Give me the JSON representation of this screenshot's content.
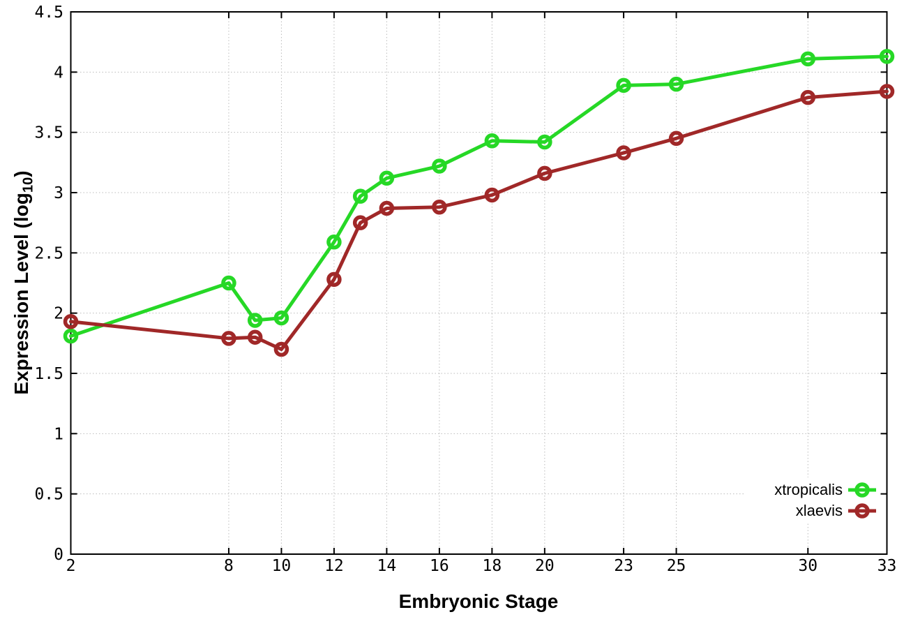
{
  "page": {
    "background": "#ffffff"
  },
  "chart_data": {
    "type": "line",
    "title": "",
    "xlabel": "Embryonic Stage",
    "ylabel": {
      "prefix": "Expression Level (log",
      "sub": "10",
      "suffix": ")"
    },
    "xlim": [
      2,
      33
    ],
    "ylim": [
      0,
      4.5
    ],
    "grid": true,
    "legend_position": "bottom-right",
    "x_tick_values": [
      2,
      8,
      10,
      12,
      14,
      16,
      18,
      20,
      23,
      25,
      30,
      33
    ],
    "x_tick_labels": [
      "2",
      "8",
      "10",
      "12",
      "14",
      "16",
      "18",
      "20",
      "23",
      "25",
      "30",
      "33"
    ],
    "y_tick_values": [
      0,
      0.5,
      1,
      1.5,
      2,
      2.5,
      3,
      3.5,
      4,
      4.5
    ],
    "y_tick_labels": [
      "0",
      "0.5",
      "1",
      "1.5",
      "2",
      "2.5",
      "3",
      "3.5",
      "4",
      "4.5"
    ],
    "x": [
      2,
      8,
      9,
      10,
      12,
      13,
      14,
      16,
      18,
      20,
      23,
      25,
      30,
      33
    ],
    "series": [
      {
        "name": "xtropicalis",
        "color": "#26d826",
        "values": [
          1.81,
          2.25,
          1.94,
          1.96,
          2.59,
          2.97,
          3.12,
          3.22,
          3.43,
          3.42,
          3.89,
          3.9,
          4.11,
          4.13
        ]
      },
      {
        "name": "xlaevis",
        "color": "#a02828",
        "values": [
          1.93,
          1.79,
          1.8,
          1.7,
          2.28,
          2.75,
          2.87,
          2.88,
          2.98,
          3.16,
          3.33,
          3.45,
          3.79,
          3.84
        ]
      }
    ],
    "colors": {
      "axis": "#000000",
      "grid": "#bbbbbb",
      "text": "#000000",
      "legend_background": "#ffffff"
    }
  }
}
